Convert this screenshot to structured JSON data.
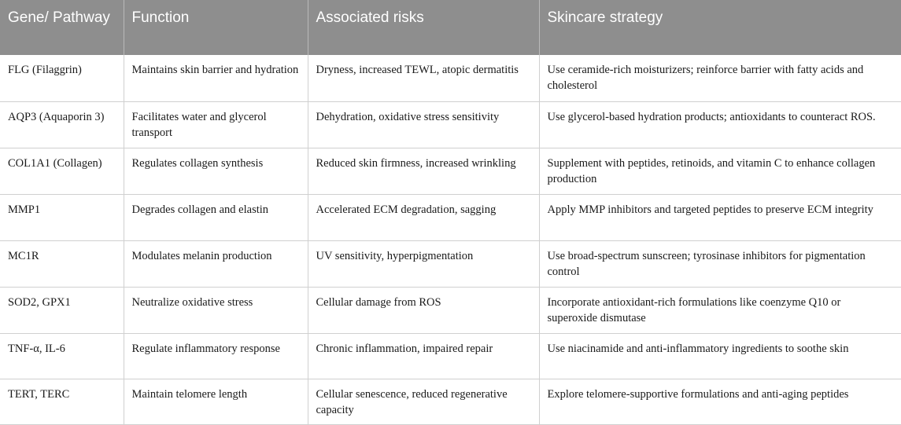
{
  "table": {
    "headers": [
      "Gene/ Pathway",
      "Function",
      "Associated risks",
      "Skincare strategy"
    ],
    "rows": [
      [
        "FLG (Filaggrin)",
        "Maintains skin barrier and hydration",
        "Dryness, increased TEWL, atopic dermatitis",
        "Use ceramide-rich moisturizers; reinforce barrier with fatty acids and cholesterol"
      ],
      [
        "AQP3 (Aquaporin 3)",
        "Facilitates water and glycerol transport",
        "Dehydration, oxidative stress sensitivity",
        "Use glycerol-based hydration products; antioxidants to counteract ROS."
      ],
      [
        "COL1A1 (Collagen)",
        "Regulates collagen synthesis",
        "Reduced skin firmness, increased wrinkling",
        "Supplement with peptides, retinoids, and vitamin C to enhance collagen production"
      ],
      [
        "MMP1",
        "Degrades collagen and elastin",
        "Accelerated ECM degradation, sagging",
        "Apply MMP inhibitors and targeted peptides to preserve ECM integrity"
      ],
      [
        "MC1R",
        "Modulates melanin production",
        "UV sensitivity, hyperpigmentation",
        "Use broad-spectrum sunscreen; tyrosinase inhibitors for pigmentation control"
      ],
      [
        "SOD2, GPX1",
        "Neutralize oxidative stress",
        "Cellular damage from ROS",
        "Incorporate antioxidant-rich formulations like coenzyme Q10 or superoxide dismutase"
      ],
      [
        "TNF-α, IL-6",
        "Regulate inflammatory response",
        "Chronic inflammation, impaired repair",
        "Use niacinamide and anti-inflammatory ingredients to soothe skin"
      ],
      [
        "TERT, TERC",
        "Maintain telomere length",
        "Cellular senescence, reduced regenerative capacity",
        "Explore telomere-supportive formulations and anti-aging peptides"
      ]
    ]
  }
}
